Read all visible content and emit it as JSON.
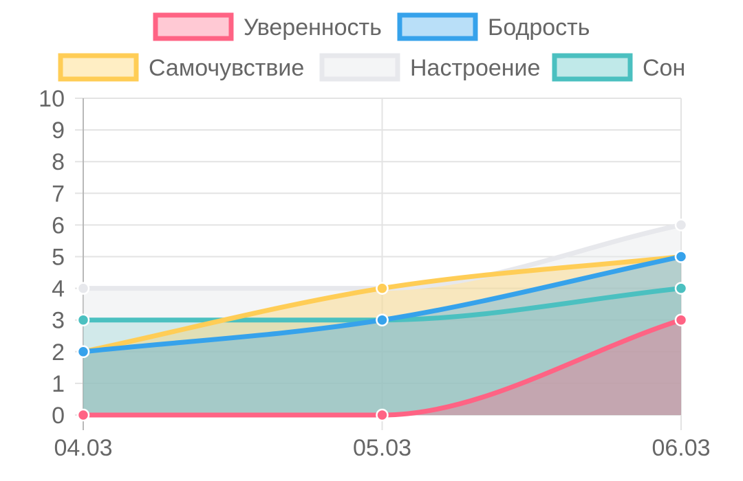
{
  "chart_data": {
    "type": "area",
    "categories": [
      "04.03",
      "05.03",
      "06.03"
    ],
    "y_ticks": [
      "0",
      "1",
      "2",
      "3",
      "4",
      "5",
      "6",
      "7",
      "8",
      "9",
      "10"
    ],
    "ylim": [
      0,
      10
    ],
    "grid": true,
    "legend_position": "top",
    "series": [
      {
        "name": "Уверенность",
        "values": [
          0,
          0,
          3
        ],
        "color": "#ff6384",
        "fill": "rgba(255,99,132,0.35)"
      },
      {
        "name": "Бодрость",
        "values": [
          2,
          3,
          5
        ],
        "color": "#36a2eb",
        "fill": "rgba(54,162,235,0.35)"
      },
      {
        "name": "Самочувствие",
        "values": [
          2,
          4,
          5
        ],
        "color": "#ffcd56",
        "fill": "rgba(255,205,86,0.35)"
      },
      {
        "name": "Настроение",
        "values": [
          4,
          4,
          6
        ],
        "color": "#e7e8ec",
        "fill": "rgba(231,232,236,0.45)"
      },
      {
        "name": "Сон",
        "values": [
          3,
          3,
          4
        ],
        "color": "#4bc0c0",
        "fill": "rgba(75,192,192,0.35)"
      }
    ]
  }
}
